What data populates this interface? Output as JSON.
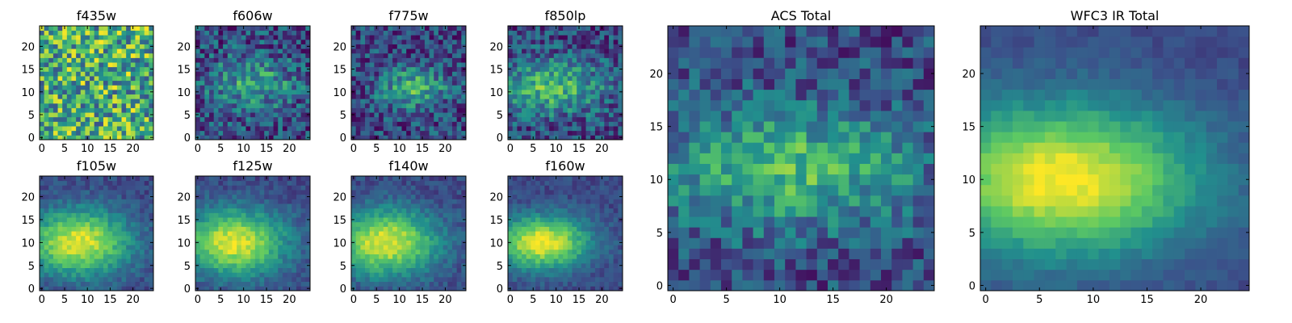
{
  "figure": {
    "colormap": "viridis",
    "colormap_stops": [
      "#440154",
      "#3b528b",
      "#21908d",
      "#5dc963",
      "#fde725"
    ],
    "background": "#ffffff"
  },
  "chart_data": [
    {
      "type": "heatmap",
      "title": "f435w",
      "grid_size": [
        25,
        25
      ],
      "x_ticks": [
        0,
        5,
        10,
        15,
        20
      ],
      "y_ticks": [
        0,
        5,
        10,
        15,
        20
      ],
      "xlim": [
        -0.5,
        24.5
      ],
      "ylim": [
        -0.5,
        24.5
      ],
      "grid": false,
      "intensity_model": {
        "kind": "noise",
        "noise": 0.65,
        "seed": 1
      }
    },
    {
      "type": "heatmap",
      "title": "f606w",
      "grid_size": [
        25,
        25
      ],
      "x_ticks": [
        0,
        5,
        10,
        15,
        20
      ],
      "y_ticks": [
        0,
        5,
        10,
        15,
        20
      ],
      "xlim": [
        -0.5,
        24.5
      ],
      "ylim": [
        -0.5,
        24.5
      ],
      "grid": false,
      "intensity_model": {
        "kind": "blob",
        "peak": [
          12,
          12
        ],
        "spread": [
          7,
          4
        ],
        "amplitude": 0.45,
        "noise": 0.5,
        "seed": 2
      }
    },
    {
      "type": "heatmap",
      "title": "f775w",
      "grid_size": [
        25,
        25
      ],
      "x_ticks": [
        0,
        5,
        10,
        15,
        20
      ],
      "y_ticks": [
        0,
        5,
        10,
        15,
        20
      ],
      "xlim": [
        -0.5,
        24.5
      ],
      "ylim": [
        -0.5,
        24.5
      ],
      "grid": false,
      "intensity_model": {
        "kind": "blob",
        "peak": [
          13,
          11
        ],
        "spread": [
          5,
          3
        ],
        "amplitude": 0.55,
        "noise": 0.45,
        "seed": 3
      }
    },
    {
      "type": "heatmap",
      "title": "f850lp",
      "grid_size": [
        25,
        25
      ],
      "x_ticks": [
        0,
        5,
        10,
        15,
        20
      ],
      "y_ticks": [
        0,
        5,
        10,
        15,
        20
      ],
      "xlim": [
        -0.5,
        24.5
      ],
      "ylim": [
        -0.5,
        24.5
      ],
      "grid": false,
      "intensity_model": {
        "kind": "blob",
        "peak": [
          9,
          11
        ],
        "spread": [
          8,
          4
        ],
        "amplitude": 0.6,
        "noise": 0.45,
        "seed": 4
      }
    },
    {
      "type": "heatmap",
      "title": "f105w",
      "grid_size": [
        25,
        25
      ],
      "x_ticks": [
        0,
        5,
        10,
        15,
        20
      ],
      "y_ticks": [
        0,
        5,
        10,
        15,
        20
      ],
      "xlim": [
        -0.5,
        24.5
      ],
      "ylim": [
        -0.5,
        24.5
      ],
      "grid": false,
      "intensity_model": {
        "kind": "blob",
        "peak": [
          8,
          10
        ],
        "spread": [
          8,
          5
        ],
        "amplitude": 0.95,
        "noise": 0.18,
        "seed": 5
      }
    },
    {
      "type": "heatmap",
      "title": "f125w",
      "grid_size": [
        25,
        25
      ],
      "x_ticks": [
        0,
        5,
        10,
        15,
        20
      ],
      "y_ticks": [
        0,
        5,
        10,
        15,
        20
      ],
      "xlim": [
        -0.5,
        24.5
      ],
      "ylim": [
        -0.5,
        24.5
      ],
      "grid": false,
      "intensity_model": {
        "kind": "blob",
        "peak": [
          8,
          10
        ],
        "spread": [
          8,
          5
        ],
        "amplitude": 0.95,
        "noise": 0.18,
        "seed": 6
      }
    },
    {
      "type": "heatmap",
      "title": "f140w",
      "grid_size": [
        25,
        25
      ],
      "x_ticks": [
        0,
        5,
        10,
        15,
        20
      ],
      "y_ticks": [
        0,
        5,
        10,
        15,
        20
      ],
      "xlim": [
        -0.5,
        24.5
      ],
      "ylim": [
        -0.5,
        24.5
      ],
      "grid": false,
      "intensity_model": {
        "kind": "blob",
        "peak": [
          7,
          10
        ],
        "spread": [
          8,
          5
        ],
        "amplitude": 0.95,
        "noise": 0.18,
        "seed": 7
      }
    },
    {
      "type": "heatmap",
      "title": "f160w",
      "grid_size": [
        25,
        25
      ],
      "x_ticks": [
        0,
        5,
        10,
        15,
        20
      ],
      "y_ticks": [
        0,
        5,
        10,
        15,
        20
      ],
      "xlim": [
        -0.5,
        24.5
      ],
      "ylim": [
        -0.5,
        24.5
      ],
      "grid": false,
      "intensity_model": {
        "kind": "blob",
        "peak": [
          7,
          10
        ],
        "spread": [
          7,
          4
        ],
        "amplitude": 1.0,
        "noise": 0.16,
        "seed": 8
      }
    },
    {
      "type": "heatmap",
      "title": "ACS Total",
      "grid_size": [
        25,
        25
      ],
      "x_ticks": [
        0,
        5,
        10,
        15,
        20
      ],
      "y_ticks": [
        0,
        5,
        10,
        15,
        20
      ],
      "xlim": [
        -0.5,
        24.5
      ],
      "ylim": [
        -0.5,
        24.5
      ],
      "grid": false,
      "intensity_model": {
        "kind": "blob",
        "peak": [
          11,
          11
        ],
        "spread": [
          9,
          4
        ],
        "amplitude": 0.6,
        "noise": 0.38,
        "seed": 9
      }
    },
    {
      "type": "heatmap",
      "title": "WFC3 IR Total",
      "grid_size": [
        25,
        25
      ],
      "x_ticks": [
        0,
        5,
        10,
        15,
        20
      ],
      "y_ticks": [
        0,
        5,
        10,
        15,
        20
      ],
      "xlim": [
        -0.5,
        24.5
      ],
      "ylim": [
        -0.5,
        24.5
      ],
      "grid": false,
      "intensity_model": {
        "kind": "blob",
        "peak": [
          7,
          10
        ],
        "spread": [
          9,
          5
        ],
        "amplitude": 1.0,
        "noise": 0.1,
        "seed": 10
      }
    }
  ]
}
